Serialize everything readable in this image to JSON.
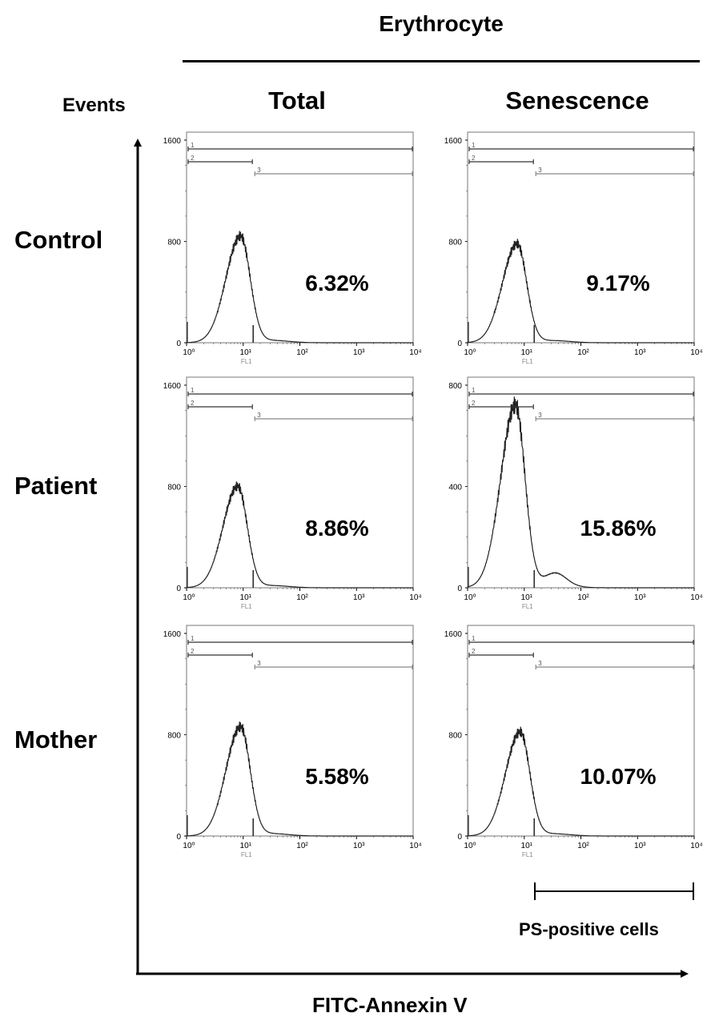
{
  "title": "Erythrocyte",
  "y_axis_label": "Events",
  "x_axis_label": "FITC-Annexin V",
  "column_headers": [
    "Total",
    "Senescence"
  ],
  "row_headers": [
    "Control",
    "Patient",
    "Mother"
  ],
  "ps_label": "PS-positive cells",
  "chart_data": {
    "type": "histogram",
    "xscale": "log",
    "xlim": [
      1,
      10000
    ],
    "xlabel": "FL1",
    "x_tick_labels": [
      "10⁰",
      "10¹",
      "10²",
      "10³",
      "10⁴"
    ],
    "gate_labels": [
      "1",
      "2",
      "3"
    ],
    "gate_threshold": 15,
    "panels": [
      {
        "row": "Control",
        "column": "Total",
        "ylim": [
          0,
          1600
        ],
        "y_tick_labels": [
          "0",
          "800",
          "1600"
        ],
        "peak_x": 9,
        "peak_y": 840,
        "percent_label": "6.32%",
        "ps_positive_percent": 6.32
      },
      {
        "row": "Control",
        "column": "Senescence",
        "ylim": [
          0,
          1600
        ],
        "y_tick_labels": [
          "0",
          "800",
          "1600"
        ],
        "peak_x": 7.5,
        "peak_y": 780,
        "percent_label": "9.17%",
        "ps_positive_percent": 9.17
      },
      {
        "row": "Patient",
        "column": "Total",
        "ylim": [
          0,
          1600
        ],
        "y_tick_labels": [
          "0",
          "800",
          "1600"
        ],
        "peak_x": 8,
        "peak_y": 800,
        "percent_label": "8.86%",
        "ps_positive_percent": 8.86
      },
      {
        "row": "Patient",
        "column": "Senescence",
        "ylim": [
          0,
          800
        ],
        "y_tick_labels": [
          "0",
          "400",
          "800"
        ],
        "peak_x": 7,
        "peak_y": 720,
        "percent_label": "15.86%",
        "ps_positive_percent": 15.86
      },
      {
        "row": "Mother",
        "column": "Total",
        "ylim": [
          0,
          1600
        ],
        "y_tick_labels": [
          "0",
          "800",
          "1600"
        ],
        "peak_x": 9,
        "peak_y": 860,
        "percent_label": "5.58%",
        "ps_positive_percent": 5.58
      },
      {
        "row": "Mother",
        "column": "Senescence",
        "ylim": [
          0,
          1600
        ],
        "y_tick_labels": [
          "0",
          "800",
          "1600"
        ],
        "peak_x": 8.5,
        "peak_y": 820,
        "percent_label": "10.07%",
        "ps_positive_percent": 10.07
      }
    ]
  }
}
